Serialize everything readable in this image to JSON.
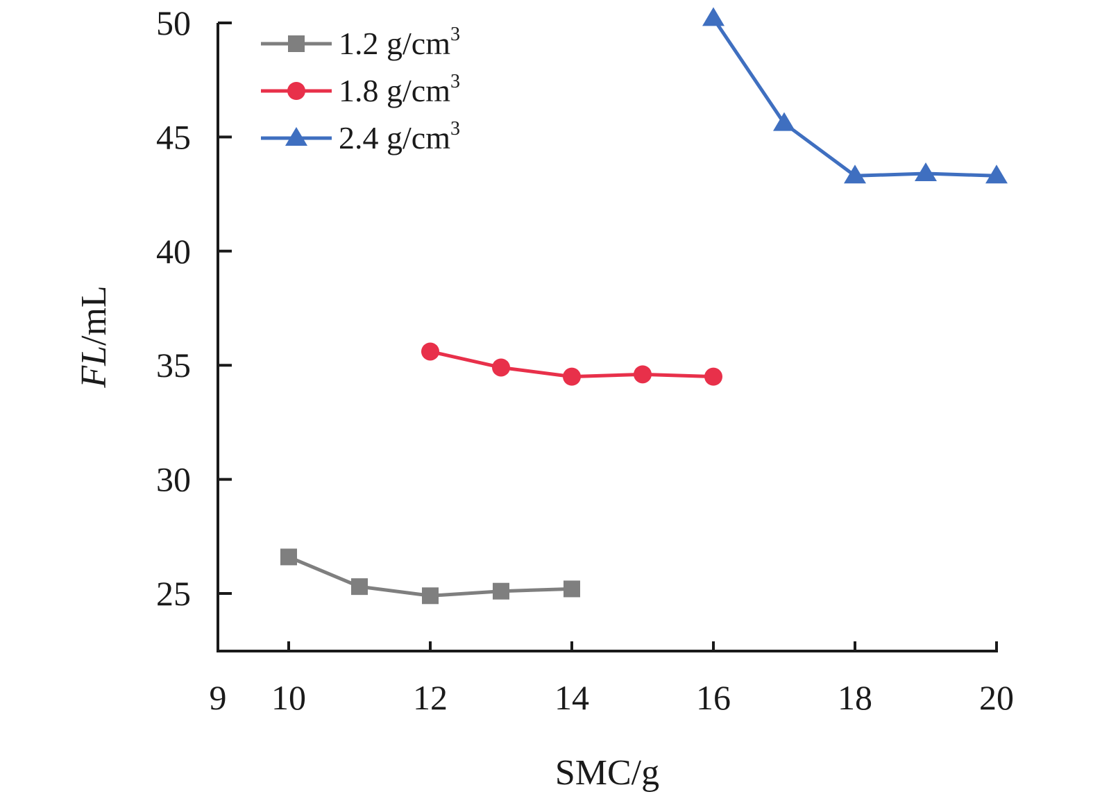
{
  "chart_data": {
    "type": "line",
    "xlabel": "SMC/g",
    "ylabel_italic": "FL",
    "ylabel_rest": "/mL",
    "xlim": [
      9,
      20
    ],
    "ylim": [
      22.5,
      50
    ],
    "x_ticks": [
      9,
      10,
      12,
      14,
      16,
      18,
      20
    ],
    "y_ticks": [
      25,
      30,
      35,
      40,
      45,
      50
    ],
    "grid": false,
    "legend_position": "top-left",
    "series": [
      {
        "name": "1.2 g/cm",
        "name_sup": "3",
        "color": "#7f7f7f",
        "marker": "square",
        "x": [
          10,
          11,
          12,
          13,
          14
        ],
        "y": [
          26.6,
          25.3,
          24.9,
          25.1,
          25.2
        ]
      },
      {
        "name": "1.8 g/cm",
        "name_sup": "3",
        "color": "#e8304a",
        "marker": "circle",
        "x": [
          12,
          13,
          14,
          15,
          16
        ],
        "y": [
          35.6,
          34.9,
          34.5,
          34.6,
          34.5
        ]
      },
      {
        "name": "2.4 g/cm",
        "name_sup": "3",
        "color": "#3f6fc0",
        "marker": "triangle",
        "x": [
          16,
          17,
          18,
          19,
          20
        ],
        "y": [
          50.2,
          45.6,
          43.3,
          43.4,
          43.3
        ]
      }
    ]
  }
}
